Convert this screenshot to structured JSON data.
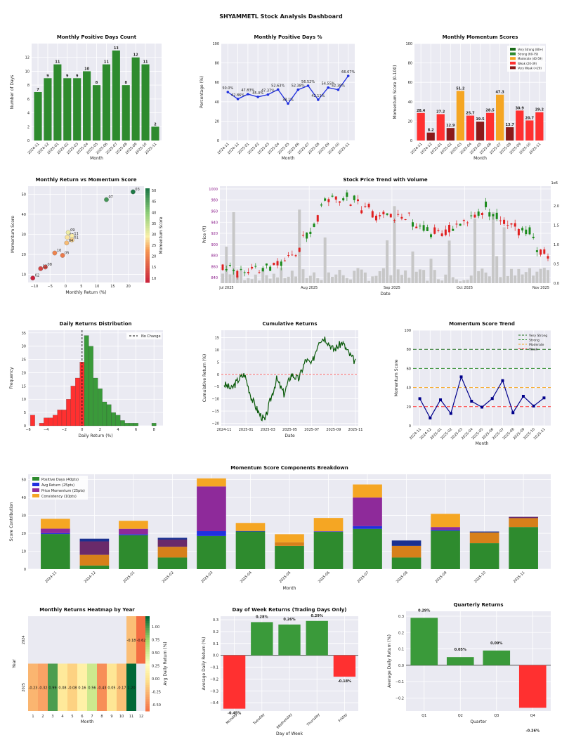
{
  "dashboard": {
    "title": "SHYAMMETL Stock Analysis Dashboard"
  },
  "colors": {
    "green": "#2e8b2e",
    "red": "#ff3030",
    "orange": "#f5a623",
    "darkred": "#8b1a1a",
    "navy": "#00008b",
    "blue": "#2030e0",
    "purple": "#8e2a9a",
    "panel": "#eaeaf2"
  },
  "chart_data": [
    {
      "id": "c1",
      "type": "bar",
      "title": "Monthly Positive Days Count",
      "xlabel": "Month",
      "ylabel": "Number of Days",
      "ylim": [
        0,
        14
      ],
      "yticks": [
        0,
        2,
        4,
        6,
        8,
        10,
        12
      ],
      "categories": [
        "2024-11",
        "2024-12",
        "2025-01",
        "2025-02",
        "2025-03",
        "2025-04",
        "2025-05",
        "2025-06",
        "2025-07",
        "2025-08",
        "2025-09",
        "2025-10",
        "2025-11"
      ],
      "values": [
        7,
        9,
        11,
        9,
        9,
        10,
        8,
        11,
        13,
        8,
        12,
        11,
        2
      ],
      "labels": [
        "7",
        "9",
        "11",
        "9",
        "9",
        "10",
        "8",
        "11",
        "13",
        "8",
        "12",
        "11",
        "2"
      ]
    },
    {
      "id": "c2",
      "type": "line",
      "title": "Monthly Positive Days %",
      "xlabel": "Month",
      "ylabel": "Percentage (%)",
      "ylim": [
        0,
        100
      ],
      "yticks": [
        0,
        20,
        40,
        60,
        80,
        100
      ],
      "categories": [
        "2024-11",
        "2024-12",
        "2025-01",
        "2025-02",
        "2025-03",
        "2025-04",
        "2025-05",
        "2025-06",
        "2025-07",
        "2025-08",
        "2025-09",
        "2025-10",
        "2025-11"
      ],
      "values": [
        50.0,
        42.86,
        47.83,
        45.0,
        47.37,
        52.63,
        38.1,
        52.38,
        56.52,
        42.11,
        54.55,
        52.38,
        66.67
      ],
      "labels": [
        "50.0%",
        "42.86%",
        "47.83%",
        "45.0%",
        "47.37%",
        "52.63%",
        "38.1%",
        "52.38%",
        "56.52%",
        "42.11%",
        "54.55%",
        "52.38%",
        "66.67%"
      ]
    },
    {
      "id": "c3",
      "type": "bar",
      "title": "Monthly Momentum Scores",
      "xlabel": "Month",
      "ylabel": "Momentum Score (0-100)",
      "ylim": [
        0,
        100
      ],
      "yticks": [
        0,
        20,
        40,
        60,
        80,
        100
      ],
      "categories": [
        "2024-11",
        "2024-12",
        "2025-01",
        "2025-02",
        "2025-03",
        "2025-04",
        "2025-05",
        "2025-06",
        "2025-07",
        "2025-08",
        "2025-09",
        "2025-10",
        "2025-11"
      ],
      "values": [
        28.4,
        8.2,
        27.2,
        12.9,
        51.2,
        25.7,
        19.5,
        28.5,
        47.3,
        13.7,
        30.9,
        20.7,
        29.2
      ],
      "labels": [
        "28.4",
        "8.2",
        "27.2",
        "12.9",
        "51.2",
        "25.7",
        "19.5",
        "28.5",
        "47.3",
        "13.7",
        "30.9",
        "20.7",
        "29.2"
      ],
      "legend": [
        "Very Strong (80+)",
        "Strong (60-79)",
        "Moderate (40-59)",
        "Weak (20-39)",
        "Very Weak (<20)"
      ],
      "legend_position": "top-right"
    },
    {
      "id": "c4",
      "type": "scatter",
      "title": "Monthly Return vs Momentum Score",
      "xlabel": "Monthly Return (%)",
      "ylabel": "Momentum Score",
      "colorbar_label": "Momentum Score",
      "xlim": [
        -12,
        25
      ],
      "ylim": [
        6,
        54
      ],
      "xticks": [
        -10,
        -5,
        0,
        5,
        10,
        15,
        20
      ],
      "yticks": [
        10,
        20,
        30,
        40,
        50
      ],
      "colorbar_ticks": [
        10,
        15,
        20,
        25,
        30,
        35,
        40,
        45,
        50
      ],
      "labels": [
        "03",
        "07",
        "09",
        "06",
        "11",
        "01",
        "04",
        "10",
        "05",
        "08",
        "12",
        "02"
      ],
      "x": [
        21.5,
        13.0,
        0.8,
        0.5,
        2.0,
        2.0,
        0.3,
        -3.5,
        -1.0,
        -6.5,
        -8.0,
        -10.5
      ],
      "y": [
        51.2,
        47.3,
        30.9,
        28.5,
        29.2,
        27.2,
        25.7,
        20.7,
        19.5,
        13.7,
        12.9,
        8.2
      ],
      "point_labels": [
        "03",
        "07",
        "09",
        "06",
        "11",
        "01",
        "04",
        "10",
        "05",
        "08",
        "12",
        "02"
      ]
    },
    {
      "id": "c5",
      "type": "candlestick",
      "title": "Stock Price Trend with Volume",
      "xlabel": "Date",
      "ylabel": "Price (₹)",
      "ylabel2": "Volume",
      "exponent": "1e6",
      "ylim": [
        830,
        1005
      ],
      "yticks": [
        840,
        860,
        880,
        900,
        920,
        940,
        960,
        980,
        1000
      ],
      "y2ticks": [
        "0.0",
        "0.5",
        "1.0",
        "1.5",
        "2.0"
      ],
      "xticks": [
        "Jul 2025",
        "Aug 2025",
        "Sep 2025",
        "Oct 2025",
        "Nov 2025"
      ],
      "note": "approx 90 trading days; values estimated"
    },
    {
      "id": "c6",
      "type": "histogram",
      "title": "Daily Returns Distribution",
      "xlabel": "Daily Return (%)",
      "ylabel": "Frequency",
      "legend": [
        "No Change"
      ],
      "xlim": [
        -6,
        9
      ],
      "ylim": [
        0,
        36
      ],
      "xticks": [
        -6,
        -4,
        -2,
        0,
        2,
        4,
        6,
        8
      ],
      "yticks": [
        0,
        5,
        10,
        15,
        20,
        25,
        30,
        35
      ],
      "bin_start": -5.75,
      "bin_width": 0.5,
      "counts": [
        4,
        0,
        1,
        3,
        3,
        4,
        6,
        6,
        10,
        15,
        18,
        24,
        34,
        30,
        18,
        14,
        9,
        8,
        5,
        4,
        2,
        1,
        1,
        1,
        0,
        0,
        0,
        1
      ]
    },
    {
      "id": "c7",
      "type": "line",
      "title": "Cumulative Returns",
      "xlabel": "Date",
      "ylabel": "Cumulative Return (%)",
      "ylim": [
        -21,
        18
      ],
      "yticks": [
        -20,
        -15,
        -10,
        -5,
        0,
        5,
        10,
        15
      ],
      "xticks": [
        "2024-11",
        "2025-01",
        "2025-03",
        "2025-05",
        "2025-07",
        "2025-09",
        "2025-11"
      ],
      "note": "daily series estimated"
    },
    {
      "id": "c8",
      "type": "line",
      "title": "Momentum Score Trend",
      "xlabel": "Month",
      "ylabel": "Momentum Score",
      "ylim": [
        0,
        100
      ],
      "yticks": [
        0,
        20,
        40,
        60,
        80,
        100
      ],
      "categories": [
        "2024-11",
        "2024-12",
        "2025-01",
        "2025-02",
        "2025-03",
        "2025-04",
        "2025-05",
        "2025-06",
        "2025-07",
        "2025-08",
        "2025-09",
        "2025-10",
        "2025-11"
      ],
      "values": [
        28.4,
        8.2,
        27.2,
        12.9,
        51.2,
        25.7,
        19.5,
        28.5,
        47.3,
        13.7,
        30.9,
        20.7,
        29.2
      ],
      "thresholds": [
        80,
        60,
        40,
        20
      ],
      "legend": [
        "Very Strong",
        "Strong",
        "Moderate",
        "Weak"
      ]
    },
    {
      "id": "c9",
      "type": "stacked_bar",
      "title": "Momentum Score Components Breakdown",
      "xlabel": "Month",
      "ylabel": "Score Contribution",
      "ylim": [
        0,
        53
      ],
      "yticks": [
        0,
        10,
        20,
        30,
        40,
        50
      ],
      "categories": [
        "2024-11",
        "2024-12",
        "2025-01",
        "2025-02",
        "2025-03",
        "2025-04",
        "2025-05",
        "2025-06",
        "2025-07",
        "2025-08",
        "2025-09",
        "2025-10",
        "2025-11"
      ],
      "legend": [
        "Positive Days (40pts)",
        "Avg Return (25pts)",
        "Price Momentum (25pts)",
        "Consistency (10pts)"
      ],
      "series_colors": [
        "#2e8b2e",
        "#2030e0",
        "#8e2a9a",
        "#f5a623"
      ],
      "segments": [
        [
          [
            19.6,
            "#2e8b2e"
          ],
          [
            0.5,
            "#2030e0"
          ],
          [
            2.5,
            "#8e2a9a"
          ],
          [
            5.5,
            "#f5a623"
          ]
        ],
        [
          [
            2.0,
            "#2e8b2e"
          ],
          [
            6.0,
            "#d7801a"
          ],
          [
            7.5,
            "#6a2a6a"
          ],
          [
            1.5,
            "#1a3090"
          ]
        ],
        [
          [
            19.0,
            "#2e8b2e"
          ],
          [
            0.5,
            "#2030e0"
          ],
          [
            3.0,
            "#8e2a9a"
          ],
          [
            4.5,
            "#f5a623"
          ]
        ],
        [
          [
            6.5,
            "#2e8b2e"
          ],
          [
            6.0,
            "#d7801a"
          ],
          [
            4.0,
            "#6a2a6a"
          ],
          [
            1.0,
            "#1a3090"
          ]
        ],
        [
          [
            18.5,
            "#2e8b2e"
          ],
          [
            2.7,
            "#2030e0"
          ],
          [
            25.0,
            "#8e2a9a"
          ],
          [
            4.5,
            "#f5a623"
          ]
        ],
        [
          [
            21.0,
            "#2e8b2e"
          ],
          [
            0.3,
            "#2030e0"
          ],
          [
            4.5,
            "#f5a623"
          ]
        ],
        [
          [
            13.0,
            "#2e8b2e"
          ],
          [
            2.0,
            "#d7801a"
          ],
          [
            4.5,
            "#f5a623"
          ]
        ],
        [
          [
            20.8,
            "#2e8b2e"
          ],
          [
            0.3,
            "#2030e0"
          ],
          [
            7.5,
            "#f5a623"
          ]
        ],
        [
          [
            22.5,
            "#2e8b2e"
          ],
          [
            1.5,
            "#2030e0"
          ],
          [
            16.0,
            "#8e2a9a"
          ],
          [
            7.3,
            "#f5a623"
          ]
        ],
        [
          [
            6.5,
            "#2e8b2e"
          ],
          [
            6.5,
            "#d7801a"
          ],
          [
            3.0,
            "#1a3090"
          ]
        ],
        [
          [
            21.5,
            "#2e8b2e"
          ],
          [
            0.5,
            "#2030e0"
          ],
          [
            1.5,
            "#8e2a9a"
          ],
          [
            7.4,
            "#f5a623"
          ]
        ],
        [
          [
            14.5,
            "#2e8b2e"
          ],
          [
            6.0,
            "#d7801a"
          ],
          [
            0.5,
            "#1a3090"
          ]
        ],
        [
          [
            23.5,
            "#2e8b2e"
          ],
          [
            5.0,
            "#d7801a"
          ],
          [
            0.7,
            "#6a2a6a"
          ]
        ]
      ]
    },
    {
      "id": "c10",
      "type": "heatmap",
      "title": "Monthly Returns Heatmap by Year",
      "xlabel": "Month",
      "ylabel": "Year",
      "colorbar_label": "Avg Daily Return (%)",
      "rows": [
        "2024",
        "2025"
      ],
      "cols": [
        "1",
        "2",
        "3",
        "4",
        "5",
        "6",
        "7",
        "8",
        "9",
        "10",
        "11",
        "12"
      ],
      "values": [
        [
          null,
          null,
          null,
          null,
          null,
          null,
          null,
          null,
          null,
          null,
          -0.18,
          -0.62
        ],
        [
          -0.23,
          -0.32,
          0.99,
          0.08,
          -0.08,
          0.16,
          0.56,
          -0.43,
          0.05,
          -0.17,
          1.2,
          null
        ]
      ],
      "labels": [
        [
          null,
          null,
          null,
          null,
          null,
          null,
          null,
          null,
          null,
          null,
          "-0.18",
          "-0.62"
        ],
        [
          "-0.23",
          "-0.32",
          "0.99",
          "0.08",
          "-0.08",
          "0.16",
          "0.56",
          "-0.43",
          "0.05",
          "-0.17",
          "1.20",
          null
        ]
      ],
      "colorbar_ticks": [
        "1.00",
        "0.75",
        "0.50",
        "0.25",
        "0.00",
        "-0.25",
        "-0.50"
      ]
    },
    {
      "id": "c11",
      "type": "bar",
      "title": "Day of Week Returns (Trading Days Only)",
      "xlabel": "Day of Week",
      "ylabel": "Average Daily Return (%)",
      "ylim": [
        -0.47,
        0.33
      ],
      "yticks": [
        -0.4,
        -0.3,
        -0.2,
        -0.1,
        0.0,
        0.1,
        0.2,
        0.3
      ],
      "ytick_labels": [
        "−0.4",
        "−0.3",
        "−0.2",
        "−0.1",
        "0.0",
        "0.1",
        "0.2",
        "0.3"
      ],
      "categories": [
        "Monday",
        "Tuesday",
        "Wednesday",
        "Thursday",
        "Friday"
      ],
      "values": [
        -0.45,
        0.28,
        0.26,
        0.29,
        -0.18
      ],
      "labels": [
        "-0.45%",
        "0.28%",
        "0.26%",
        "0.29%",
        "-0.18%"
      ]
    },
    {
      "id": "c12",
      "type": "bar",
      "title": "Quarterly Returns",
      "xlabel": "Quarter",
      "ylabel": "Average Daily Return (%)",
      "ylim": [
        -0.28,
        0.33
      ],
      "yticks": [
        -0.2,
        -0.1,
        0.0,
        0.1,
        0.2,
        0.3
      ],
      "ytick_labels": [
        "−0.2",
        "−0.1",
        "0.0",
        "0.1",
        "0.2",
        "0.3"
      ],
      "categories": [
        "Q1",
        "Q2",
        "Q3",
        "Q4"
      ],
      "values": [
        0.29,
        0.05,
        0.09,
        -0.26
      ],
      "labels": [
        "0.29%",
        "0.05%",
        "0.09%",
        "-0.26%"
      ]
    }
  ]
}
